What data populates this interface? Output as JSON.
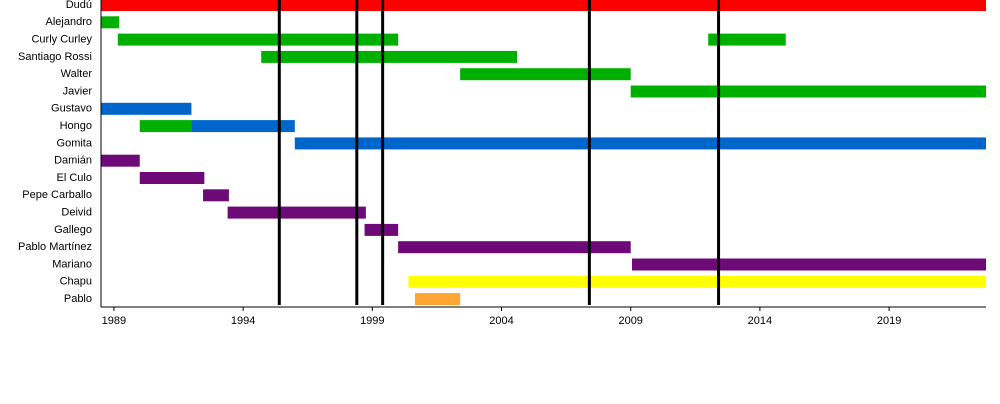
{
  "chart_data": {
    "type": "timeline",
    "xlim": [
      1988.5,
      2022.75
    ],
    "xticks": [
      1989,
      1994,
      1999,
      2004,
      2009,
      2014,
      2019
    ],
    "events": [
      1995.4,
      1998.4,
      1999.4,
      2007.4,
      2012.4
    ],
    "rows": [
      {
        "name": "Dudú",
        "segments": [
          {
            "start": 1988.5,
            "end": 2022.75,
            "color": "#ff0000"
          }
        ]
      },
      {
        "name": "Alejandro",
        "segments": [
          {
            "start": 1988.5,
            "end": 1989.2,
            "color": "#00b000"
          }
        ]
      },
      {
        "name": "Curly Curley",
        "segments": [
          {
            "start": 1989.15,
            "end": 2000.0,
            "color": "#00b000"
          },
          {
            "start": 2012.0,
            "end": 2015.0,
            "color": "#00b000"
          }
        ]
      },
      {
        "name": "Santiago Rossi",
        "segments": [
          {
            "start": 1994.7,
            "end": 2004.6,
            "color": "#00b000"
          }
        ]
      },
      {
        "name": "Walter",
        "segments": [
          {
            "start": 2002.4,
            "end": 2009.0,
            "color": "#00b000"
          }
        ]
      },
      {
        "name": "Javier",
        "segments": [
          {
            "start": 2009.0,
            "end": 2022.75,
            "color": "#00b000"
          }
        ]
      },
      {
        "name": "Gustavo",
        "segments": [
          {
            "start": 1988.5,
            "end": 1992.0,
            "color": "#0066cc"
          }
        ]
      },
      {
        "name": "Hongo",
        "segments": [
          {
            "start": 1990.0,
            "end": 1992.0,
            "color": "#00b000"
          },
          {
            "start": 1992.0,
            "end": 1996.0,
            "color": "#0066cc"
          }
        ]
      },
      {
        "name": "Gomita",
        "segments": [
          {
            "start": 1996.0,
            "end": 2022.75,
            "color": "#0066cc"
          }
        ]
      },
      {
        "name": "Damián",
        "segments": [
          {
            "start": 1988.5,
            "end": 1990.0,
            "color": "#6e0a78"
          }
        ]
      },
      {
        "name": "El Culo",
        "segments": [
          {
            "start": 1990.0,
            "end": 1992.5,
            "color": "#6e0a78"
          }
        ]
      },
      {
        "name": "Pepe Carballo",
        "segments": [
          {
            "start": 1992.45,
            "end": 1993.45,
            "color": "#6e0a78"
          }
        ]
      },
      {
        "name": "Deivid",
        "segments": [
          {
            "start": 1993.4,
            "end": 1998.75,
            "color": "#6e0a78"
          }
        ]
      },
      {
        "name": "Gallego",
        "segments": [
          {
            "start": 1998.7,
            "end": 2000.0,
            "color": "#6e0a78"
          }
        ]
      },
      {
        "name": "Pablo Martínez",
        "segments": [
          {
            "start": 2000.0,
            "end": 2009.0,
            "color": "#6e0a78"
          }
        ]
      },
      {
        "name": "Mariano",
        "segments": [
          {
            "start": 2009.05,
            "end": 2022.75,
            "color": "#6e0a78"
          }
        ]
      },
      {
        "name": "Chapu",
        "segments": [
          {
            "start": 2000.4,
            "end": 2022.75,
            "color": "#ffff00"
          }
        ]
      },
      {
        "name": "Pablo",
        "segments": [
          {
            "start": 2000.65,
            "end": 2002.4,
            "color": "#ffa533"
          }
        ]
      }
    ]
  }
}
